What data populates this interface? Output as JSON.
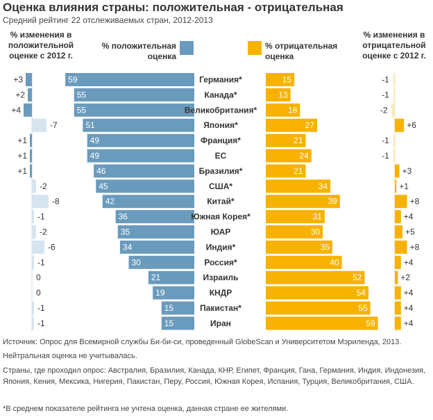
{
  "header": {
    "title": "Оценка влияния страны: положительная - отрицательная",
    "subtitle": "Средний рейтинг 22 отслеживаемых стран, 2012-2013",
    "left_change_label": "% изменения в положительной оценке с 2012 г.",
    "positive_label": "% положительная оценка",
    "negative_label": "% отрицательная оценка",
    "right_change_label": "% изменения в отрицательной оценке с 2012 г."
  },
  "colors": {
    "positive": "#6a9bbd",
    "negative": "#f7b200",
    "positive_change": "#6a9bbd",
    "positive_change_neg": "#d6e4ef",
    "negative_change": "#f7b200",
    "negative_change_neg": "#fbeac0",
    "country_text": "#333333"
  },
  "chart_data": {
    "type": "bar",
    "categories": [
      "Германия*",
      "Канада*",
      "Великобритания*",
      "Япония*",
      "Франция*",
      "ЕС",
      "Бразилия*",
      "США*",
      "Китай*",
      "Южная Корея*",
      "ЮАР",
      "Индия*",
      "Россия*",
      "Израиль",
      "КНДР",
      "Пакистан*",
      "Иран"
    ],
    "series": [
      {
        "name": "% положительная оценка",
        "values": [
          59,
          55,
          55,
          51,
          49,
          49,
          46,
          45,
          42,
          36,
          35,
          34,
          30,
          21,
          19,
          15,
          15
        ]
      },
      {
        "name": "% отрицательная оценка",
        "values": [
          15,
          13,
          18,
          27,
          21,
          24,
          21,
          34,
          39,
          31,
          30,
          35,
          40,
          52,
          54,
          55,
          59
        ]
      },
      {
        "name": "% изменения в положительной оценке с 2012 г.",
        "values": [
          3,
          2,
          4,
          -7,
          1,
          1,
          1,
          -2,
          -8,
          -1,
          -2,
          -6,
          -1,
          0,
          0,
          -1,
          -1
        ]
      },
      {
        "name": "% изменения в отрицательной оценке с 2012 г.",
        "values": [
          -1,
          -1,
          -2,
          6,
          -1,
          -1,
          3,
          1,
          8,
          4,
          5,
          8,
          4,
          2,
          4,
          4,
          4
        ]
      }
    ],
    "positive_labels": [
      "59",
      "55",
      "55",
      "51",
      "49",
      "49",
      "46",
      "45",
      "42",
      "36",
      "35",
      "34",
      "30",
      "21",
      "19",
      "15",
      "15"
    ],
    "negative_labels": [
      "15",
      "13",
      "18",
      "27",
      "21",
      "24",
      "21",
      "34",
      "39",
      "31",
      "30",
      "35",
      "40",
      "52",
      "54",
      "55",
      "59"
    ],
    "positive_change_labels": [
      "+3",
      "+2",
      "+4",
      "-7",
      "+1",
      "+1",
      "+1",
      "-2",
      "-8",
      "-1",
      "-2",
      "-6",
      "-1",
      "0",
      "0",
      "-1",
      "-1"
    ],
    "negative_change_labels": [
      "-1",
      "-1",
      "-2",
      "+6",
      "-1",
      "-1",
      "+3",
      "+1",
      "+8",
      "+4",
      "+5",
      "+8",
      "+4",
      "+2",
      "+4",
      "+4",
      "+4"
    ]
  },
  "notes": {
    "source": "Источник: Опрос для Всемирной службы Би-би-си, проведенный GlobeScan и Университетом Мэриленда, 2013.",
    "neutral": "Нейтральная оценка не учитывалась.",
    "countries": "Страны, где проходил опрос: Австралия, Бразилия, Канада, КНР, Египет, Франция, Гана, Германия, Индия, Индонезия, Япония, Кения, Мексика, Нигерия, Пакистан, Перу, Россия, Южная Корея, Испания, Турция, Великобритания, США.",
    "footnote": "*В среднем показателе рейтинга не учтена оценка, данная стране ее жителями."
  }
}
